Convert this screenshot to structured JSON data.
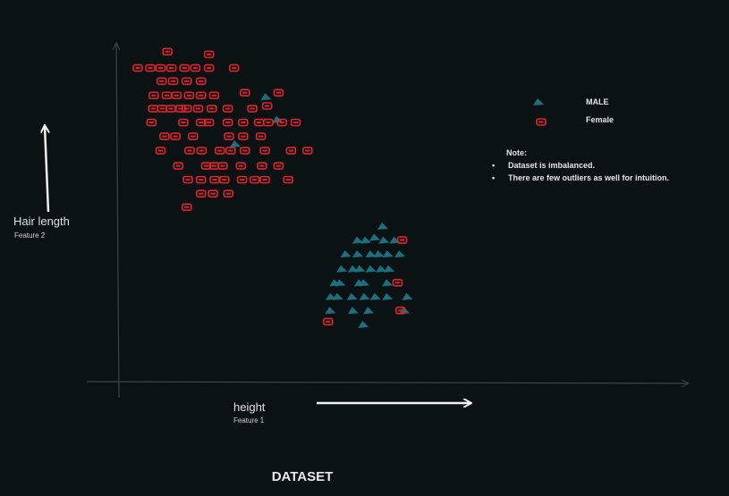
{
  "chart_data": {
    "type": "scatter",
    "title": "DATASET",
    "xlabel": "height",
    "xlabel_sub": "Feature 1",
    "ylabel": "Hair length",
    "ylabel_sub": "Feature 2",
    "xlim": [
      0,
      100
    ],
    "ylim": [
      0,
      100
    ],
    "grid": false,
    "legend_position": "top-right",
    "series": [
      {
        "name": "MALE",
        "marker": "triangle",
        "color": "#1f6e7e",
        "points": [
          [
            25.8,
            84.1
          ],
          [
            20.4,
            70.2
          ],
          [
            46.3,
            45.9
          ],
          [
            41.9,
            41.8
          ],
          [
            43.3,
            41.8
          ],
          [
            44.9,
            42.6
          ],
          [
            46.5,
            41.8
          ],
          [
            48.4,
            41.8
          ],
          [
            39.8,
            37.7
          ],
          [
            41.9,
            37.7
          ],
          [
            44.2,
            37.7
          ],
          [
            45.6,
            37.7
          ],
          [
            47.2,
            37.7
          ],
          [
            49.3,
            37.7
          ],
          [
            39.1,
            33.3
          ],
          [
            41.1,
            33.3
          ],
          [
            42.3,
            33.3
          ],
          [
            44.2,
            33.3
          ],
          [
            46.0,
            33.3
          ],
          [
            47.4,
            33.3
          ],
          [
            37.9,
            29.2
          ],
          [
            38.8,
            29.2
          ],
          [
            42.2,
            29.2
          ],
          [
            43.0,
            29.2
          ],
          [
            47.1,
            29.2
          ],
          [
            37.2,
            25.1
          ],
          [
            38.4,
            25.1
          ],
          [
            40.9,
            25.1
          ],
          [
            43.1,
            25.1
          ],
          [
            45.0,
            25.1
          ],
          [
            47.1,
            25.1
          ],
          [
            50.6,
            25.1
          ],
          [
            37.1,
            21.0
          ],
          [
            41.1,
            21.0
          ],
          [
            43.8,
            21.0
          ],
          [
            50.1,
            21.0
          ],
          [
            42.9,
            16.9
          ],
          [
            27.8,
            77.4
          ]
        ]
      },
      {
        "name": "Female",
        "marker": "rounded-square",
        "color": "#e0242c",
        "points": [
          [
            8.5,
            97.4
          ],
          [
            3.3,
            92.6
          ],
          [
            5.5,
            92.6
          ],
          [
            7.3,
            92.6
          ],
          [
            9.2,
            92.6
          ],
          [
            11.5,
            92.6
          ],
          [
            13.4,
            92.6
          ],
          [
            15.8,
            92.6
          ],
          [
            20.2,
            92.6
          ],
          [
            15.8,
            96.6
          ],
          [
            7.5,
            88.7
          ],
          [
            9.5,
            88.7
          ],
          [
            11.9,
            88.7
          ],
          [
            14.4,
            88.7
          ],
          [
            6.1,
            84.5
          ],
          [
            8.4,
            84.5
          ],
          [
            10.1,
            84.5
          ],
          [
            12.3,
            84.5
          ],
          [
            14.4,
            84.5
          ],
          [
            16.7,
            84.5
          ],
          [
            22.1,
            85.3
          ],
          [
            28.0,
            85.3
          ],
          [
            6.0,
            80.6
          ],
          [
            7.6,
            80.6
          ],
          [
            9.1,
            80.6
          ],
          [
            10.8,
            80.6
          ],
          [
            11.9,
            80.6
          ],
          [
            13.9,
            80.6
          ],
          [
            16.3,
            80.6
          ],
          [
            19.1,
            80.6
          ],
          [
            23.4,
            80.6
          ],
          [
            26.0,
            81.4
          ],
          [
            5.7,
            76.5
          ],
          [
            11.3,
            76.5
          ],
          [
            14.4,
            76.5
          ],
          [
            15.8,
            76.5
          ],
          [
            19.1,
            76.5
          ],
          [
            21.8,
            76.5
          ],
          [
            24.6,
            76.5
          ],
          [
            26.2,
            76.5
          ],
          [
            28.6,
            76.5
          ],
          [
            31.0,
            76.5
          ],
          [
            8.0,
            72.4
          ],
          [
            9.9,
            72.4
          ],
          [
            13.0,
            72.4
          ],
          [
            19.3,
            72.4
          ],
          [
            21.8,
            72.4
          ],
          [
            24.9,
            72.4
          ],
          [
            7.3,
            68.2
          ],
          [
            12.4,
            68.2
          ],
          [
            14.5,
            68.2
          ],
          [
            17.7,
            68.2
          ],
          [
            19.6,
            68.2
          ],
          [
            22.1,
            68.2
          ],
          [
            25.6,
            68.2
          ],
          [
            30.2,
            68.2
          ],
          [
            33.1,
            68.2
          ],
          [
            10.4,
            63.7
          ],
          [
            15.3,
            63.7
          ],
          [
            16.7,
            63.7
          ],
          [
            18.2,
            63.7
          ],
          [
            21.4,
            63.7
          ],
          [
            25.1,
            63.7
          ],
          [
            28.0,
            63.7
          ],
          [
            12.1,
            59.6
          ],
          [
            14.4,
            59.6
          ],
          [
            16.8,
            59.6
          ],
          [
            18.5,
            59.6
          ],
          [
            21.6,
            59.6
          ],
          [
            23.8,
            59.6
          ],
          [
            25.6,
            59.6
          ],
          [
            29.7,
            59.6
          ],
          [
            14.4,
            55.5
          ],
          [
            16.5,
            55.5
          ],
          [
            19.2,
            55.5
          ],
          [
            11.9,
            51.5
          ],
          [
            49.7,
            41.8
          ],
          [
            48.9,
            29.2
          ],
          [
            49.4,
            21.0
          ],
          [
            36.7,
            17.7
          ]
        ]
      }
    ],
    "note": {
      "title": "Note:",
      "items": [
        "Dataset is imbalanced.",
        "There are few outliers as well for intuition."
      ]
    }
  }
}
